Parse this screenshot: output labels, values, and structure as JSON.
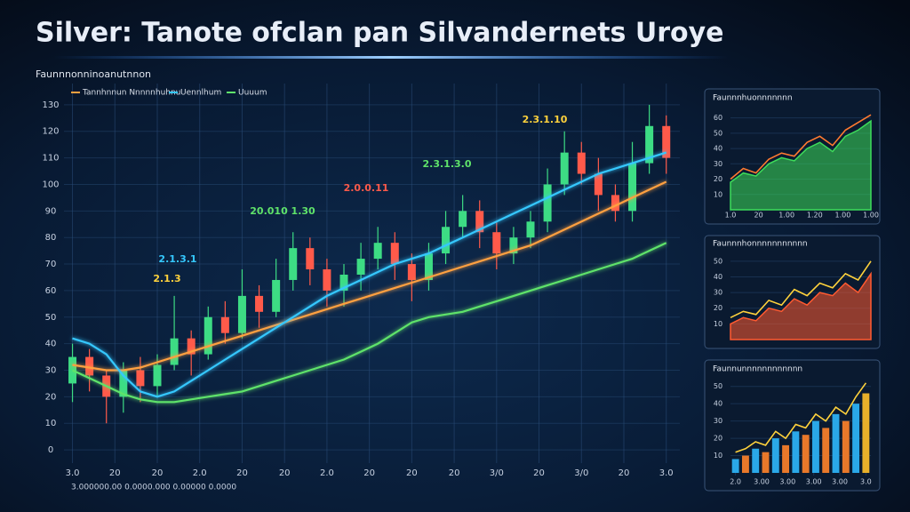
{
  "title": "Silver: Tanote ofclan pan Silvandernets Uroye",
  "chart_data": [
    {
      "type": "candlestick",
      "title": "Faunnnonninoanutnnon",
      "x_label": "3.000000.00 0.0000.000 0.00000 0.0000",
      "x": [
        0,
        1,
        2,
        3,
        4,
        5,
        6,
        7,
        8,
        9,
        10,
        11,
        12,
        13,
        14,
        15,
        16,
        17,
        18,
        19,
        20,
        21,
        22,
        23,
        24,
        25,
        26,
        27,
        28,
        29,
        30,
        31,
        32,
        33,
        34,
        35
      ],
      "open": [
        25,
        35,
        28,
        20,
        30,
        24,
        32,
        42,
        36,
        50,
        44,
        58,
        52,
        64,
        76,
        68,
        60,
        66,
        72,
        78,
        70,
        64,
        74,
        84,
        90,
        82,
        74,
        80,
        86,
        100,
        112,
        104,
        96,
        90,
        108,
        122
      ],
      "close": [
        35,
        28,
        20,
        30,
        24,
        32,
        42,
        36,
        50,
        44,
        58,
        52,
        64,
        76,
        68,
        60,
        66,
        72,
        78,
        70,
        64,
        74,
        84,
        90,
        82,
        74,
        80,
        86,
        100,
        112,
        104,
        96,
        90,
        108,
        122,
        110
      ],
      "high": [
        40,
        38,
        30,
        33,
        35,
        36,
        58,
        45,
        54,
        56,
        68,
        62,
        72,
        82,
        80,
        72,
        70,
        78,
        84,
        82,
        74,
        78,
        90,
        96,
        94,
        86,
        84,
        90,
        106,
        120,
        116,
        110,
        100,
        116,
        130,
        126
      ],
      "low": [
        18,
        22,
        10,
        14,
        18,
        20,
        30,
        28,
        34,
        40,
        42,
        46,
        50,
        60,
        62,
        54,
        54,
        60,
        68,
        64,
        56,
        60,
        70,
        80,
        76,
        68,
        70,
        76,
        82,
        96,
        100,
        90,
        86,
        86,
        104,
        104
      ],
      "up_color": "#3ddc84",
      "down_color": "#ff5a4a",
      "series": [
        {
          "name": "Tannhnnun Nnnnnhuhnu",
          "color": "#ffa040",
          "values": [
            32,
            31,
            30,
            30,
            31,
            33,
            35,
            37,
            39,
            41,
            43,
            45,
            47,
            49,
            51,
            53,
            55,
            57,
            59,
            61,
            63,
            65,
            67,
            69,
            71,
            73,
            75,
            77,
            80,
            83,
            86,
            89,
            92,
            95,
            98,
            101
          ]
        },
        {
          "name": "Uennlhum",
          "color": "#35c8ff",
          "values": [
            42,
            40,
            36,
            28,
            22,
            20,
            22,
            26,
            30,
            34,
            38,
            42,
            46,
            50,
            54,
            58,
            61,
            64,
            67,
            70,
            72,
            74,
            77,
            80,
            83,
            86,
            89,
            92,
            95,
            98,
            101,
            104,
            106,
            108,
            110,
            112
          ]
        },
        {
          "name": "Uuuum",
          "color": "#5fe36a",
          "values": [
            30,
            27,
            24,
            21,
            19,
            18,
            18,
            19,
            20,
            21,
            22,
            24,
            26,
            28,
            30,
            32,
            34,
            37,
            40,
            44,
            48,
            50,
            51,
            52,
            54,
            56,
            58,
            60,
            62,
            64,
            66,
            68,
            70,
            72,
            75,
            78
          ]
        }
      ],
      "annotations": [
        {
          "text": "20.010 1.30",
          "color": "#5fe36a"
        },
        {
          "text": "2.0.0.11",
          "color": "#ff5a4a"
        },
        {
          "text": "2.3.1.3.0",
          "color": "#5fe36a"
        },
        {
          "text": "2.3.1.10",
          "color": "#ffd23c"
        },
        {
          "text": "2.1.3.1",
          "color": "#35c8ff"
        },
        {
          "text": "2.1.3",
          "color": "#ffd23c"
        }
      ],
      "xlim": [
        -0.5,
        35.8
      ],
      "xticks": [
        {
          "value": 0,
          "label": "3.0"
        },
        {
          "value": 2.5,
          "label": "20"
        },
        {
          "value": 5,
          "label": "20"
        },
        {
          "value": 7.5,
          "label": "2.0"
        },
        {
          "value": 10,
          "label": "20"
        },
        {
          "value": 12.5,
          "label": "20"
        },
        {
          "value": 15,
          "label": "2.0"
        },
        {
          "value": 17.5,
          "label": "20"
        },
        {
          "value": 20,
          "label": "20"
        },
        {
          "value": 22.5,
          "label": "20"
        },
        {
          "value": 25,
          "label": "3/0"
        },
        {
          "value": 27.5,
          "label": "20"
        },
        {
          "value": 30,
          "label": "3/0"
        },
        {
          "value": 32.5,
          "label": "20"
        },
        {
          "value": 35,
          "label": "3.0"
        }
      ],
      "ylim": [
        -5,
        138
      ],
      "yticks": [
        0,
        10,
        20,
        30,
        40,
        50,
        60,
        70,
        80,
        90,
        100,
        110,
        120,
        130
      ],
      "grid": true
    },
    {
      "type": "area",
      "title": "Faunnnhuonnnnnnn",
      "x": [
        0,
        1,
        2,
        3,
        4,
        5,
        6,
        7,
        8,
        9,
        10,
        11
      ],
      "series": [
        {
          "name": "Area",
          "color": "#3ddc5a",
          "fill": true,
          "values": [
            18,
            24,
            22,
            30,
            34,
            32,
            40,
            44,
            38,
            48,
            52,
            58
          ]
        },
        {
          "name": "Line",
          "color": "#ff7a30",
          "fill": false,
          "values": [
            20,
            27,
            24,
            33,
            37,
            35,
            44,
            48,
            42,
            52,
            57,
            62
          ]
        }
      ],
      "xlim": [
        0,
        11
      ],
      "xticks": [
        {
          "value": 0,
          "label": "1.0"
        },
        {
          "value": 2.2,
          "label": "20"
        },
        {
          "value": 4.4,
          "label": "1.00"
        },
        {
          "value": 6.6,
          "label": "1.20"
        },
        {
          "value": 8.8,
          "label": "1.00"
        },
        {
          "value": 11,
          "label": "1.00"
        }
      ],
      "ylim": [
        0,
        65
      ],
      "yticks": [
        10,
        20,
        30,
        40,
        50,
        60
      ]
    },
    {
      "type": "area",
      "title": "Faunnnhonnnnnnnnnnn",
      "x": [
        0,
        1,
        2,
        3,
        4,
        5,
        6,
        7,
        8,
        9,
        10,
        11
      ],
      "series": [
        {
          "name": "Area",
          "color": "#ff5a30",
          "fill": true,
          "values": [
            10,
            14,
            12,
            20,
            18,
            26,
            22,
            30,
            28,
            36,
            30,
            42
          ]
        },
        {
          "name": "Line",
          "color": "#ffd23c",
          "fill": false,
          "values": [
            14,
            18,
            16,
            25,
            22,
            32,
            28,
            36,
            33,
            42,
            38,
            50
          ]
        }
      ],
      "xlim": [
        0,
        11
      ],
      "ylim": [
        0,
        55
      ],
      "yticks": [
        10,
        20,
        30,
        40,
        50
      ]
    },
    {
      "type": "bar",
      "title": "Faunnunnnnnnnnnnnn",
      "x": [
        0,
        1,
        2,
        3,
        4,
        5,
        6,
        7,
        8,
        9,
        10,
        11,
        12,
        13
      ],
      "values": [
        8,
        10,
        14,
        12,
        20,
        16,
        24,
        22,
        30,
        26,
        34,
        30,
        40,
        46
      ],
      "colors": [
        "#2aa8e8",
        "#e8782a",
        "#2aa8e8",
        "#e8782a",
        "#2aa8e8",
        "#e8782a",
        "#2aa8e8",
        "#e8782a",
        "#2aa8e8",
        "#e8782a",
        "#2aa8e8",
        "#e8782a",
        "#2aa8e8",
        "#e8b02a"
      ],
      "series": [
        {
          "name": "Line",
          "color": "#ffd23c",
          "fill": false,
          "values": [
            12,
            14,
            18,
            16,
            24,
            20,
            28,
            26,
            34,
            30,
            38,
            34,
            44,
            52
          ]
        }
      ],
      "xlim": [
        -0.5,
        13.5
      ],
      "xticks": [
        {
          "value": 0,
          "label": "2.0"
        },
        {
          "value": 2.6,
          "label": "3.00"
        },
        {
          "value": 5.2,
          "label": "3.00"
        },
        {
          "value": 7.8,
          "label": "3.00"
        },
        {
          "value": 10.4,
          "label": "3.00"
        },
        {
          "value": 13,
          "label": "3.0"
        }
      ],
      "ylim": [
        0,
        55
      ],
      "yticks": [
        10,
        20,
        30,
        40,
        50
      ]
    }
  ]
}
